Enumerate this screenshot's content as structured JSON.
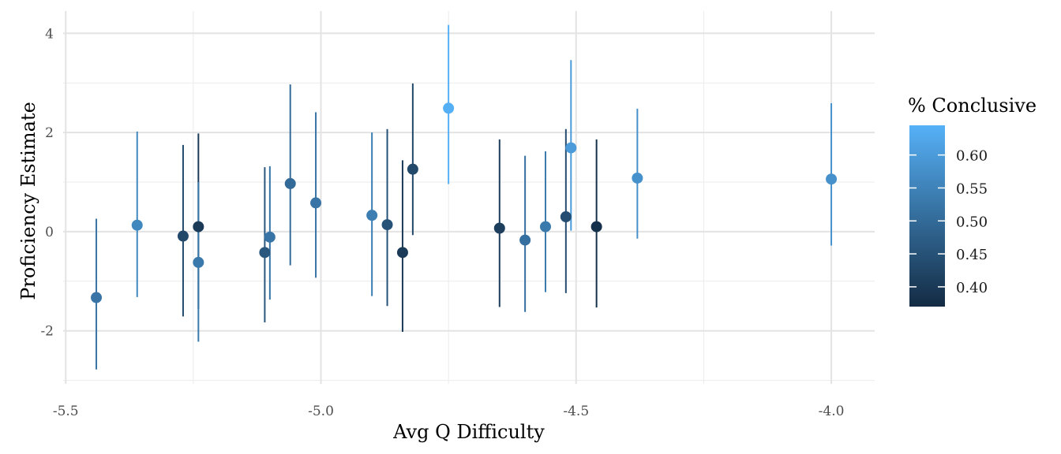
{
  "chart_data": {
    "type": "scatter",
    "title": "",
    "xlabel": "Avg Q Difficulty",
    "ylabel": "Proficiency Estimate",
    "xlim": [
      -5.505,
      -3.915
    ],
    "ylim": [
      -3.07,
      4.45
    ],
    "x_ticks": [
      -5.5,
      -5.0,
      -4.5,
      -4.0
    ],
    "x_tick_labels": [
      "-5.5",
      "-5.0",
      "-4.5",
      "-4.0"
    ],
    "y_ticks": [
      -2,
      0,
      2,
      4
    ],
    "y_tick_labels": [
      "-2",
      "0",
      "2",
      "4"
    ],
    "grid": true,
    "error_bars": true,
    "legend": {
      "title": "% Conclusive",
      "placement": "right",
      "type": "colorbar",
      "range": [
        0.37,
        0.645
      ],
      "ticks": [
        0.4,
        0.45,
        0.5,
        0.55,
        0.6
      ],
      "tick_labels": [
        "0.40",
        "0.45",
        "0.50",
        "0.55",
        "0.60"
      ],
      "color_low": "#132b43",
      "color_high": "#56b1f7"
    },
    "points": [
      {
        "x": -5.44,
        "y": -1.33,
        "lo": -2.78,
        "hi": 0.26,
        "conclusive": 0.52
      },
      {
        "x": -5.36,
        "y": 0.13,
        "lo": -1.32,
        "hi": 2.02,
        "conclusive": 0.56
      },
      {
        "x": -5.27,
        "y": -0.09,
        "lo": -1.71,
        "hi": 1.75,
        "conclusive": 0.43
      },
      {
        "x": -5.24,
        "y": 0.1,
        "lo": -1.56,
        "hi": 1.98,
        "conclusive": 0.4
      },
      {
        "x": -5.24,
        "y": -0.62,
        "lo": -2.22,
        "hi": 1.0,
        "conclusive": 0.53
      },
      {
        "x": -5.11,
        "y": -0.42,
        "lo": -1.83,
        "hi": 1.3,
        "conclusive": 0.46
      },
      {
        "x": -5.1,
        "y": -0.11,
        "lo": -1.37,
        "hi": 1.32,
        "conclusive": 0.52
      },
      {
        "x": -5.06,
        "y": 0.97,
        "lo": -0.68,
        "hi": 2.97,
        "conclusive": 0.5
      },
      {
        "x": -5.01,
        "y": 0.58,
        "lo": -0.93,
        "hi": 2.41,
        "conclusive": 0.52
      },
      {
        "x": -4.9,
        "y": 0.33,
        "lo": -1.3,
        "hi": 2.0,
        "conclusive": 0.54
      },
      {
        "x": -4.87,
        "y": 0.14,
        "lo": -1.5,
        "hi": 2.07,
        "conclusive": 0.45
      },
      {
        "x": -4.84,
        "y": -0.42,
        "lo": -2.02,
        "hi": 1.44,
        "conclusive": 0.4
      },
      {
        "x": -4.82,
        "y": 1.26,
        "lo": -0.07,
        "hi": 2.99,
        "conclusive": 0.43
      },
      {
        "x": -4.75,
        "y": 2.49,
        "lo": 0.96,
        "hi": 4.17,
        "conclusive": 0.64
      },
      {
        "x": -4.65,
        "y": 0.07,
        "lo": -1.52,
        "hi": 1.86,
        "conclusive": 0.41
      },
      {
        "x": -4.6,
        "y": -0.17,
        "lo": -1.62,
        "hi": 1.53,
        "conclusive": 0.51
      },
      {
        "x": -4.56,
        "y": 0.1,
        "lo": -1.22,
        "hi": 1.62,
        "conclusive": 0.53
      },
      {
        "x": -4.52,
        "y": 0.3,
        "lo": -1.24,
        "hi": 2.07,
        "conclusive": 0.44
      },
      {
        "x": -4.51,
        "y": 1.69,
        "lo": 0.02,
        "hi": 3.46,
        "conclusive": 0.6
      },
      {
        "x": -4.46,
        "y": 0.1,
        "lo": -1.53,
        "hi": 1.86,
        "conclusive": 0.38
      },
      {
        "x": -4.38,
        "y": 1.08,
        "lo": -0.14,
        "hi": 2.48,
        "conclusive": 0.58
      },
      {
        "x": -4.0,
        "y": 1.06,
        "lo": -0.28,
        "hi": 2.59,
        "conclusive": 0.58
      }
    ]
  }
}
